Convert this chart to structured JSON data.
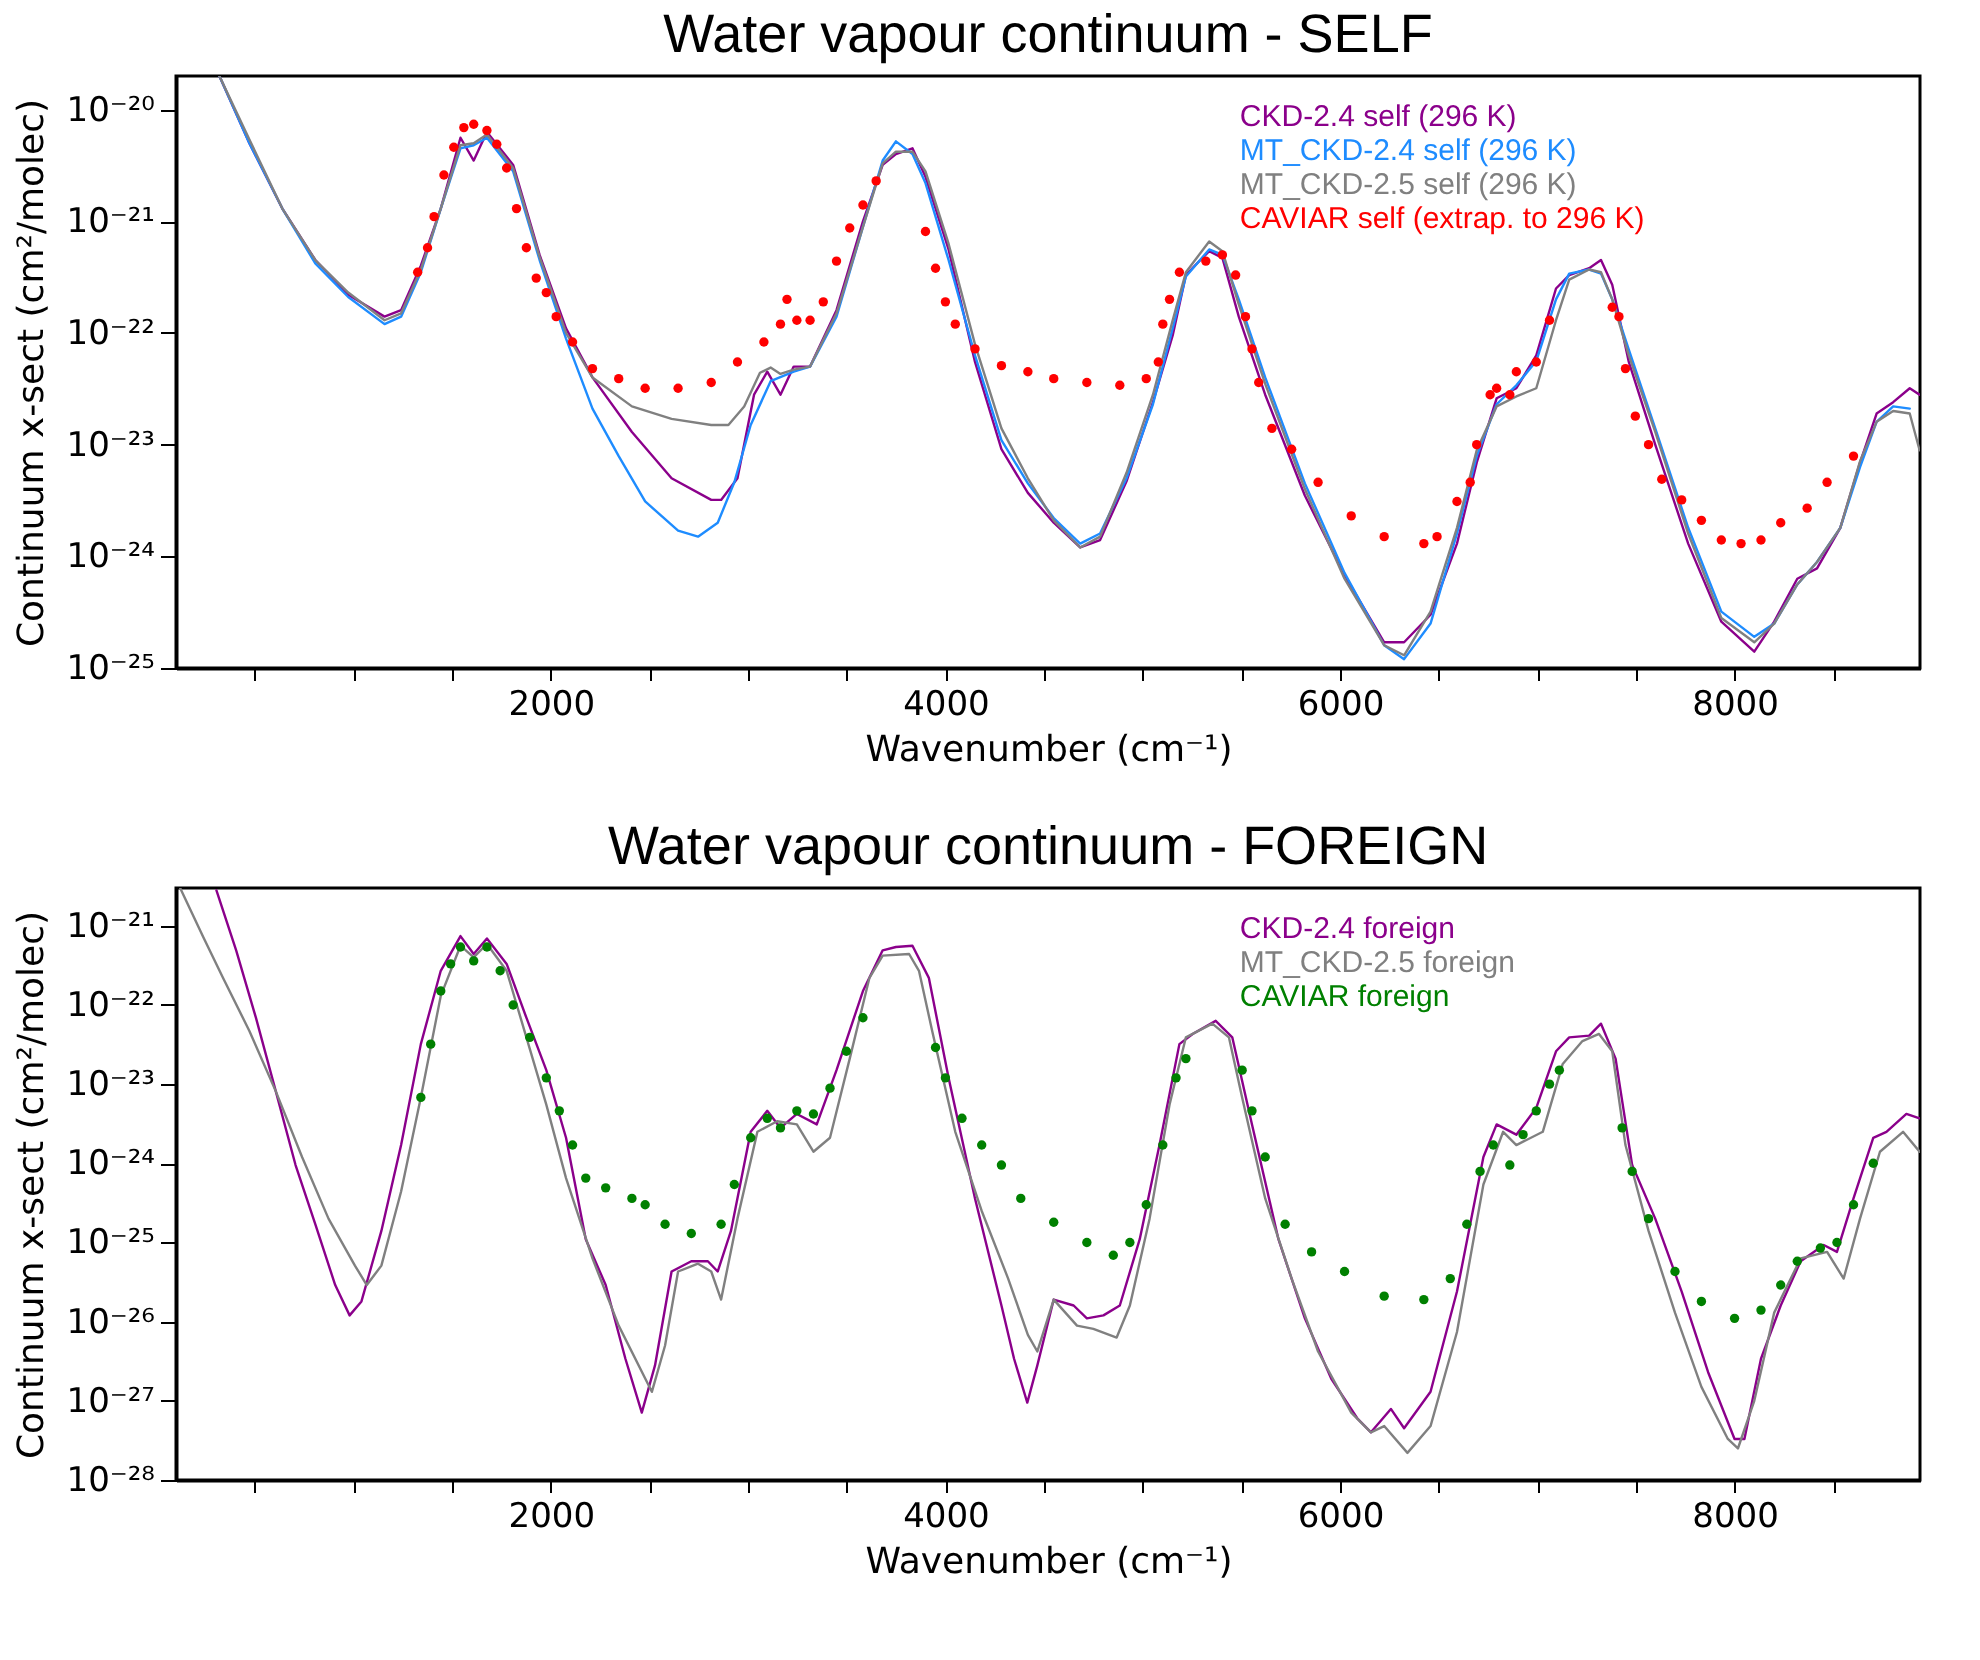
{
  "chart_data": [
    {
      "type": "line",
      "title": "Water vapour continuum - SELF",
      "xlabel": "Wavenumber (cm⁻¹)",
      "ylabel": "Continuum x-sect (cm²/molec)",
      "log": "y",
      "legend": "top right",
      "xlim": [
        100,
        8940
      ],
      "ylim": [
        1e-25,
        2e-20
      ],
      "xticks": [
        {
          "value": 500,
          "label": null
        },
        {
          "value": 1000,
          "label": null
        },
        {
          "value": 1500,
          "label": null
        },
        2000,
        {
          "value": 2500,
          "label": null
        },
        {
          "value": 3000,
          "label": null
        },
        {
          "value": 3500,
          "label": null
        },
        4000,
        {
          "value": 4500,
          "label": null
        },
        {
          "value": 5000,
          "label": null
        },
        {
          "value": 5500,
          "label": null
        },
        6000,
        {
          "value": 6500,
          "label": null
        },
        {
          "value": 7000,
          "label": null
        },
        {
          "value": 7500,
          "label": null
        },
        8000,
        {
          "value": 8500,
          "label": null
        }
      ],
      "yticks": [
        {
          "value": 1e-25,
          "label": "10⁻²⁵"
        },
        {
          "value": 1e-24,
          "label": "10⁻²⁴"
        },
        {
          "value": 1e-23,
          "label": "10⁻²³"
        },
        {
          "value": 1e-22,
          "label": "10⁻²²"
        },
        {
          "value": 1e-21,
          "label": "10⁻²¹"
        },
        {
          "value": 1e-20,
          "label": "10⁻²⁰"
        }
      ],
      "series": [
        {
          "name": "CKD-2.4 self (296 K)",
          "color": "#8b008b",
          "x": [
            320,
            472,
            639,
            806,
            973,
            1157,
            1241,
            1341,
            1442,
            1542,
            1609,
            1676,
            1809,
            1943,
            2077,
            2211,
            2411,
            2612,
            2813,
            2863,
            2946,
            3030,
            3097,
            3164,
            3231,
            3314,
            3448,
            3582,
            3682,
            3749,
            3833,
            3899,
            4016,
            4150,
            4284,
            4418,
            4549,
            4683,
            4784,
            4918,
            5052,
            5152,
            5219,
            5270,
            5337,
            5404,
            5487,
            5621,
            5822,
            6023,
            6224,
            6325,
            6459,
            6593,
            6693,
            6794,
            6894,
            6995,
            7095,
            7162,
            7263,
            7323,
            7380,
            7464,
            7598,
            7765,
            7933,
            8100,
            8201,
            8318,
            8418,
            8536,
            8636,
            8720,
            8804,
            8888,
            8938
          ],
          "values": [
            2e-20,
            5e-21,
            1.3e-21,
            4.5e-22,
            2.2e-22,
            1.4e-22,
            1.6e-22,
            4e-22,
            1.3e-21,
            5.6e-21,
            3.5e-21,
            6.3e-21,
            3.2e-21,
            5e-22,
            1.1e-22,
            4e-23,
            1.3e-23,
            5e-24,
            3.2e-24,
            3.2e-24,
            5e-24,
            2.8e-23,
            4.5e-23,
            2.8e-23,
            5e-23,
            5e-23,
            1.6e-22,
            1e-21,
            3.2e-21,
            4e-21,
            4.5e-21,
            2.5e-21,
            5.6e-22,
            5.5e-23,
            9.1e-24,
            3.7e-24,
            2e-24,
            1.2e-24,
            1.4e-24,
            4.7e-24,
            2.4e-23,
            9.5e-23,
            3.3e-22,
            4.1e-22,
            5.4e-22,
            4.7e-22,
            1.4e-22,
            2.8e-23,
            3.5e-24,
            6.8e-25,
            1.7e-25,
            1.7e-25,
            3e-25,
            1.3e-24,
            6.9e-24,
            2.6e-23,
            3.2e-23,
            6.3e-23,
            2.5e-22,
            3.3e-22,
            3.8e-22,
            4.5e-22,
            2.7e-22,
            5.5e-23,
            1e-23,
            1.3e-24,
            2.6e-25,
            1.4e-25,
            2.6e-25,
            6.3e-25,
            7.8e-25,
            1.8e-24,
            6.9e-24,
            1.9e-23,
            2.4e-23,
            3.2e-23,
            2.8e-23
          ]
        },
        {
          "name": "MT_CKD-2.4 self (296 K)",
          "color": "#1e8cff",
          "x": [
            320,
            472,
            639,
            806,
            973,
            1157,
            1241,
            1341,
            1442,
            1542,
            1609,
            1676,
            1809,
            1943,
            2077,
            2211,
            2344,
            2478,
            2645,
            2746,
            2846,
            2930,
            3013,
            3114,
            3231,
            3314,
            3448,
            3582,
            3682,
            3749,
            3833,
            3899,
            4016,
            4150,
            4284,
            4418,
            4549,
            4683,
            4784,
            4918,
            5052,
            5152,
            5219,
            5337,
            5404,
            5487,
            5621,
            5822,
            6023,
            6224,
            6325,
            6459,
            6593,
            6693,
            6794,
            6894,
            6995,
            7095,
            7162,
            7263,
            7323,
            7380,
            7464,
            7598,
            7765,
            7933,
            8100,
            8201,
            8318,
            8418,
            8536,
            8636,
            8720,
            8804,
            8888
          ],
          "values": [
            2e-20,
            5e-21,
            1.3e-21,
            4.2e-22,
            2.1e-22,
            1.2e-22,
            1.4e-22,
            3.5e-22,
            1.3e-21,
            4.5e-21,
            4.8e-21,
            5.6e-21,
            2.8e-21,
            4.5e-22,
            8.9e-23,
            2.1e-23,
            7.9e-24,
            3.1e-24,
            1.7e-24,
            1.5e-24,
            2e-24,
            4.6e-24,
            1.5e-23,
            3.7e-23,
            4.5e-23,
            5e-23,
            1.4e-22,
            8.9e-22,
            3.5e-21,
            5.2e-21,
            4e-21,
            2.2e-21,
            4.5e-22,
            6.3e-23,
            1.1e-23,
            4.5e-24,
            2.2e-24,
            1.3e-24,
            1.6e-24,
            5e-24,
            2.3e-23,
            1.1e-22,
            3.2e-22,
            5.6e-22,
            5e-22,
            2e-22,
            4e-23,
            4.5e-24,
            7.1e-25,
            1.6e-25,
            1.2e-25,
            2.5e-25,
            1.6e-24,
            7.9e-24,
            2.3e-23,
            3.4e-23,
            5.6e-23,
            2e-22,
            3.4e-22,
            3.7e-22,
            3.4e-22,
            2e-22,
            7.1e-23,
            1.4e-23,
            1.8e-24,
            3.2e-25,
            1.9e-25,
            2.5e-25,
            5.6e-25,
            8.9e-25,
            1.8e-24,
            6.3e-24,
            1.6e-23,
            2.2e-23,
            2.1e-23
          ]
        },
        {
          "name": "MT_CKD-2.5 self (296 K)",
          "color": "#808080",
          "x": [
            320,
            472,
            639,
            806,
            973,
            1157,
            1241,
            1341,
            1442,
            1542,
            1609,
            1676,
            1809,
            1943,
            2077,
            2211,
            2411,
            2612,
            2813,
            2900,
            2980,
            3060,
            3114,
            3164,
            3231,
            3314,
            3448,
            3582,
            3682,
            3749,
            3833,
            3899,
            4016,
            4150,
            4284,
            4418,
            4549,
            4683,
            4784,
            4918,
            5052,
            5152,
            5219,
            5337,
            5404,
            5487,
            5621,
            5822,
            6023,
            6224,
            6325,
            6459,
            6593,
            6693,
            6794,
            6894,
            6995,
            7095,
            7162,
            7263,
            7323,
            7380,
            7464,
            7598,
            7765,
            7933,
            8100,
            8201,
            8318,
            8418,
            8536,
            8636,
            8720,
            8804,
            8888,
            8938
          ],
          "values": [
            2e-20,
            5.4e-21,
            1.3e-21,
            4.5e-22,
            2.3e-22,
            1.3e-22,
            1.5e-22,
            3.7e-22,
            1.3e-21,
            4.8e-21,
            5e-21,
            6e-21,
            3e-21,
            4.8e-22,
            1e-22,
            4e-23,
            2.2e-23,
            1.7e-23,
            1.5e-23,
            1.5e-23,
            2.2e-23,
            4.4e-23,
            4.9e-23,
            4.3e-23,
            4.7e-23,
            5e-23,
            1.5e-22,
            8.9e-22,
            3.3e-21,
            4.2e-21,
            4.2e-21,
            2.8e-21,
            6.3e-22,
            7.9e-23,
            1.4e-23,
            5e-24,
            2.1e-24,
            1.2e-24,
            1.5e-24,
            5.6e-24,
            2.8e-23,
            1.3e-22,
            3.5e-22,
            6.6e-22,
            5.4e-22,
            1.8e-22,
            3.5e-23,
            4e-24,
            6.3e-25,
            1.6e-25,
            1.3e-25,
            3.2e-25,
            1.8e-24,
            8.9e-24,
            2.2e-23,
            2.7e-23,
            3.2e-23,
            1.3e-22,
            3e-22,
            3.7e-22,
            3.5e-22,
            2e-22,
            6.3e-23,
            1.3e-23,
            1.6e-24,
            2.8e-25,
            1.7e-25,
            2.5e-25,
            5.6e-25,
            8.9e-25,
            1.8e-24,
            7.1e-24,
            1.6e-23,
            2e-23,
            1.9e-23,
            8.9e-24
          ]
        },
        {
          "name": "CAVIAR self (extrap. to 296 K)",
          "color": "#ff0000",
          "type": "scatter",
          "marker": "circle",
          "x": [
            1325,
            1375,
            1408,
            1458,
            1508,
            1559,
            1609,
            1676,
            1726,
            1776,
            1826,
            1876,
            1926,
            1977,
            2027,
            2110,
            2211,
            2344,
            2478,
            2645,
            2813,
            2946,
            3080,
            3164,
            3197,
            3247,
            3314,
            3381,
            3448,
            3515,
            3582,
            3649,
            3899,
            3950,
            4000,
            4050,
            4150,
            4284,
            4418,
            4549,
            4717,
            4884,
            5018,
            5079,
            5102,
            5136,
            5186,
            5320,
            5404,
            5471,
            5521,
            5554,
            5588,
            5655,
            5755,
            5889,
            6057,
            6224,
            6425,
            6492,
            6593,
            6660,
            6693,
            6761,
            6794,
            6861,
            6894,
            6995,
            7062,
            7380,
            7414,
            7447,
            7497,
            7564,
            7631,
            7732,
            7832,
            7933,
            8033,
            8134,
            8234,
            8368,
            8469,
            8603
          ],
          "values": [
            3.5e-22,
            5.8e-22,
            1.1e-21,
            2.6e-21,
            4.6e-21,
            6.9e-21,
            7.4e-21,
            6.5e-21,
            4.9e-21,
            3e-21,
            1.3e-21,
            5.8e-22,
            3.1e-22,
            2.3e-22,
            1.4e-22,
            8.3e-23,
            4.8e-23,
            3.9e-23,
            3.2e-23,
            3.2e-23,
            3.6e-23,
            5.5e-23,
            8.3e-23,
            1.2e-22,
            2e-22,
            1.3e-22,
            1.3e-22,
            1.9e-22,
            4.4e-22,
            8.7e-22,
            1.4e-21,
            2.3e-21,
            8.1e-22,
            3.8e-22,
            1.9e-22,
            1.2e-22,
            7.2e-23,
            5.1e-23,
            4.5e-23,
            3.9e-23,
            3.6e-23,
            3.4e-23,
            3.9e-23,
            5.5e-23,
            1.2e-22,
            2e-22,
            3.5e-22,
            4.4e-22,
            5e-22,
            3.3e-22,
            1.4e-22,
            7.2e-23,
            3.6e-23,
            1.4e-23,
            9.1e-24,
            4.6e-24,
            2.3e-24,
            1.5e-24,
            1.3e-24,
            1.5e-24,
            3.1e-24,
            4.6e-24,
            1e-23,
            2.8e-23,
            3.2e-23,
            2.8e-23,
            4.5e-23,
            5.5e-23,
            1.3e-22,
            1.7e-22,
            1.4e-22,
            4.8e-23,
            1.8e-23,
            1e-23,
            4.9e-24,
            3.2e-24,
            2.1e-24,
            1.4e-24,
            1.3e-24,
            1.4e-24,
            2e-24,
            2.7e-24,
            4.6e-24,
            7.9e-24
          ]
        }
      ]
    },
    {
      "type": "line",
      "title": "Water vapour continuum - FOREIGN",
      "xlabel": "Wavenumber (cm⁻¹)",
      "ylabel": "Continuum x-sect (cm²/molec)",
      "log": "y",
      "legend": "top right",
      "xlim": [
        100,
        8940
      ],
      "ylim": [
        1e-28,
        3e-21
      ],
      "xticks": [
        {
          "value": 500,
          "label": null
        },
        {
          "value": 1000,
          "label": null
        },
        {
          "value": 1500,
          "label": null
        },
        2000,
        {
          "value": 2500,
          "label": null
        },
        {
          "value": 3000,
          "label": null
        },
        {
          "value": 3500,
          "label": null
        },
        4000,
        {
          "value": 4500,
          "label": null
        },
        {
          "value": 5000,
          "label": null
        },
        {
          "value": 5500,
          "label": null
        },
        6000,
        {
          "value": 6500,
          "label": null
        },
        {
          "value": 7000,
          "label": null
        },
        {
          "value": 7500,
          "label": null
        },
        8000,
        {
          "value": 8500,
          "label": null
        }
      ],
      "yticks": [
        {
          "value": 1e-28,
          "label": "10⁻²⁸"
        },
        {
          "value": 1e-27,
          "label": "10⁻²⁷"
        },
        {
          "value": 1e-26,
          "label": "10⁻²⁶"
        },
        {
          "value": 1e-25,
          "label": "10⁻²⁵"
        },
        {
          "value": 1e-24,
          "label": "10⁻²⁴"
        },
        {
          "value": 1e-23,
          "label": "10⁻²³"
        },
        {
          "value": 1e-22,
          "label": "10⁻²²"
        },
        {
          "value": 1e-21,
          "label": "10⁻²¹"
        }
      ],
      "series": [
        {
          "name": "CKD-2.4 foreign",
          "color": "#8b008b",
          "x": [
            305,
            405,
            505,
            606,
            706,
            806,
            907,
            980,
            1040,
            1141,
            1241,
            1341,
            1442,
            1542,
            1609,
            1676,
            1776,
            1876,
            1977,
            2077,
            2177,
            2278,
            2378,
            2461,
            2528,
            2612,
            2712,
            2796,
            2846,
            2913,
            3013,
            3097,
            3164,
            3247,
            3348,
            3448,
            3582,
            3682,
            3749,
            3833,
            3916,
            4016,
            4150,
            4284,
            4348,
            4415,
            4466,
            4549,
            4650,
            4717,
            4801,
            4884,
            4985,
            5085,
            5186,
            5253,
            5370,
            5454,
            5554,
            5688,
            5822,
            5956,
            6090,
            6157,
            6258,
            6325,
            6459,
            6593,
            6727,
            6794,
            6894,
            6995,
            7095,
            7162,
            7263,
            7323,
            7397,
            7481,
            7598,
            7732,
            7866,
            8000,
            8050,
            8134,
            8234,
            8335,
            8452,
            8519,
            8603,
            8703,
            8770,
            8871,
            8938
          ],
          "values": [
            2.8e-21,
            4.9e-22,
            6.9e-23,
            8.1e-24,
            9.5e-25,
            1.7e-25,
            2.9e-26,
            1.2e-26,
            1.8e-26,
            1.4e-25,
            1.7e-24,
            3.2e-23,
            2.7e-22,
            7.4e-22,
            4.4e-22,
            6.9e-22,
            3.3e-22,
            6.9e-23,
            1.5e-23,
            2.1e-24,
            1.1e-25,
            2.9e-26,
            3.4e-27,
            7.1e-28,
            2.8e-27,
            4.3e-26,
            5.8e-26,
            5.8e-26,
            4.3e-26,
            1.4e-25,
            2.5e-24,
            4.6e-24,
            2.8e-24,
            4.2e-24,
            3.1e-24,
            1.5e-23,
            1.5e-22,
            4.9e-22,
            5.4e-22,
            5.6e-22,
            2.2e-22,
            1.2e-23,
            3.6e-25,
            1.6e-26,
            3.4e-27,
            9.5e-28,
            2.8e-27,
            1.9e-26,
            1.6e-26,
            1.1e-26,
            1.2e-26,
            1.6e-26,
            1.1e-25,
            1.7e-24,
            3.2e-23,
            4.3e-23,
            6.3e-23,
            3.9e-23,
            3.1e-24,
            1.1e-25,
            1.1e-26,
            1.9e-27,
            5.9e-28,
            4e-28,
            7.9e-28,
            4.5e-28,
            1.3e-27,
            2.4e-26,
            1.2e-24,
            3.1e-24,
            2.3e-24,
            5e-24,
            2.6e-23,
            3.9e-23,
            4.1e-23,
            5.8e-23,
            2.1e-23,
            9.5e-25,
            2e-25,
            2.4e-26,
            2.3e-27,
            3.3e-28,
            3.3e-28,
            3.4e-27,
            1.6e-26,
            5.8e-26,
            9.3e-26,
            7.6e-26,
            3.6e-25,
            2.1e-24,
            2.5e-24,
            4.2e-24,
            3.7e-24
          ]
        },
        {
          "name": "MT_CKD-2.5 foreign",
          "color": "#808080",
          "x": [
            121,
            238,
            338,
            472,
            606,
            739,
            873,
            1007,
            1067,
            1141,
            1241,
            1341,
            1442,
            1542,
            1609,
            1676,
            1776,
            1876,
            1977,
            2077,
            2211,
            2344,
            2512,
            2579,
            2645,
            2746,
            2813,
            2863,
            2946,
            3047,
            3147,
            3247,
            3331,
            3415,
            3515,
            3615,
            3682,
            3816,
            3866,
            3933,
            4050,
            4184,
            4318,
            4418,
            4466,
            4549,
            4667,
            4750,
            4868,
            4935,
            5035,
            5136,
            5219,
            5353,
            5437,
            5504,
            5621,
            5755,
            5889,
            6057,
            6157,
            6224,
            6342,
            6459,
            6593,
            6727,
            6827,
            6894,
            7028,
            7129,
            7229,
            7313,
            7380,
            7447,
            7564,
            7698,
            7832,
            7966,
            8017,
            8100,
            8201,
            8335,
            8469,
            8553,
            8636,
            8737,
            8854,
            8938
          ],
          "values": [
            3e-21,
            7.2e-22,
            2.2e-22,
            4.7e-23,
            8.1e-24,
            1.2e-24,
            2e-25,
            5.1e-26,
            2.9e-26,
            5.1e-26,
            4.4e-25,
            6.8e-24,
            1.3e-22,
            5.6e-22,
            4e-22,
            5.9e-22,
            2.7e-22,
            3.9e-23,
            5.5e-24,
            6.5e-25,
            6.3e-26,
            8.9e-27,
            1.3e-27,
            5e-27,
            4.3e-26,
            5.4e-26,
            4.3e-26,
            1.9e-26,
            2e-25,
            2.5e-24,
            3.4e-24,
            3.1e-24,
            1.4e-24,
            2.1e-24,
            2.1e-23,
            2.2e-22,
            4.2e-22,
            4.4e-22,
            2.7e-22,
            4.7e-23,
            2.5e-24,
            2.5e-25,
            3.5e-26,
            6.8e-27,
            4.2e-27,
            1.9e-26,
            8.9e-27,
            8.1e-27,
            6.3e-27,
            1.6e-26,
            2e-25,
            5.5e-24,
            3.9e-23,
            5.8e-23,
            3.9e-23,
            6.8e-24,
            3.6e-25,
            3.5e-26,
            4.2e-27,
            7.1e-28,
            4e-28,
            4.8e-28,
            2.2e-28,
            4.8e-28,
            7.4e-27,
            5.4e-25,
            2.5e-24,
            1.7e-24,
            2.5e-24,
            1.8e-23,
            3.5e-23,
            4.3e-23,
            2.6e-23,
            1.7e-24,
            1.4e-25,
            1.3e-26,
            1.5e-27,
            3.3e-28,
            2.5e-28,
            1e-27,
            1.3e-26,
            6.3e-26,
            7.6e-26,
            3.5e-26,
            2e-25,
            1.4e-24,
            2.5e-24,
            1.4e-24
          ]
        },
        {
          "name": "CAVIAR foreign",
          "color": "#008000",
          "type": "scatter",
          "marker": "circle",
          "x": [
            1341,
            1391,
            1442,
            1492,
            1542,
            1609,
            1676,
            1743,
            1809,
            1893,
            1977,
            2043,
            2110,
            2177,
            2278,
            2411,
            2478,
            2579,
            2712,
            2863,
            2930,
            3013,
            3097,
            3164,
            3247,
            3331,
            3415,
            3498,
            3582,
            3950,
            4000,
            4084,
            4184,
            4284,
            4382,
            4549,
            4717,
            4851,
            4935,
            5018,
            5102,
            5169,
            5219,
            5504,
            5554,
            5621,
            5722,
            5856,
            6023,
            6224,
            6425,
            6559,
            6643,
            6710,
            6777,
            6861,
            6928,
            6995,
            7062,
            7112,
            7430,
            7481,
            7564,
            7698,
            7832,
            8000,
            8134,
            8234,
            8318,
            8435,
            8519,
            8603,
            8703
          ],
          "values": [
            6.8e-24,
            3.2e-23,
            1.5e-22,
            3.3e-22,
            5.4e-22,
            3.6e-22,
            5.4e-22,
            2.7e-22,
            1e-22,
            3.9e-23,
            1.2e-23,
            4.6e-24,
            1.7e-24,
            6.5e-25,
            4.9e-25,
            3.6e-25,
            3e-25,
            1.7e-25,
            1.3e-25,
            1.7e-25,
            5.4e-25,
            2.1e-24,
            3.7e-24,
            2.8e-24,
            4.6e-24,
            4.2e-24,
            8.9e-24,
            2.6e-23,
            6.9e-23,
            2.9e-23,
            1.2e-23,
            3.7e-24,
            1.7e-24,
            9.5e-25,
            3.6e-25,
            1.8e-25,
            1e-25,
            6.9e-26,
            1e-25,
            3e-25,
            1.7e-24,
            1.2e-23,
            2.1e-23,
            1.5e-23,
            4.6e-24,
            1.2e-24,
            1.7e-25,
            7.6e-26,
            4.3e-26,
            2.1e-26,
            1.9e-26,
            3.5e-26,
            1.7e-25,
            7.9e-25,
            1.7e-24,
            9.5e-25,
            2.3e-24,
            4.6e-24,
            1e-23,
            1.5e-23,
            2.8e-24,
            7.9e-25,
            2e-25,
            4.3e-26,
            1.8e-26,
            1.1e-26,
            1.4e-26,
            2.9e-26,
            5.8e-26,
            8.5e-26,
            1e-25,
            3e-25,
            1e-24
          ]
        }
      ]
    }
  ]
}
